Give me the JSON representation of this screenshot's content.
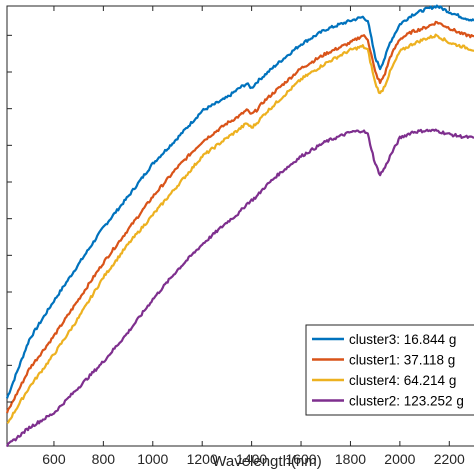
{
  "chart_data": {
    "type": "line",
    "xlabel": "Wavelength(nm)",
    "ylabel": "",
    "xlim": [
      410,
      2300
    ],
    "ylim": [
      0.04,
      0.64
    ],
    "x_ticks": [
      600,
      800,
      1000,
      1200,
      1400,
      1600,
      1800,
      2000,
      2200
    ],
    "x_tick_labels": [
      "600",
      "800",
      "1000",
      "1200",
      "1400",
      "1600",
      "1800",
      "2000",
      "2200"
    ],
    "y_ticks": [
      0.1,
      0.15,
      0.2,
      0.25,
      0.3,
      0.35,
      0.4,
      0.45,
      0.5,
      0.55,
      0.6
    ],
    "grid": false,
    "legend_position": "bottom-right",
    "x": [
      410,
      500,
      600,
      700,
      800,
      900,
      1000,
      1100,
      1200,
      1300,
      1350,
      1380,
      1400,
      1420,
      1450,
      1500,
      1600,
      1700,
      1800,
      1850,
      1870,
      1900,
      1920,
      1940,
      1960,
      2000,
      2050,
      2100,
      2150,
      2200,
      2250,
      2300
    ],
    "series": [
      {
        "name": "cluster3: 16.844 g",
        "color": "#0072BD",
        "values": [
          0.105,
          0.185,
          0.238,
          0.288,
          0.338,
          0.38,
          0.425,
          0.46,
          0.497,
          0.515,
          0.528,
          0.534,
          0.528,
          0.536,
          0.545,
          0.56,
          0.588,
          0.608,
          0.62,
          0.625,
          0.62,
          0.57,
          0.555,
          0.57,
          0.59,
          0.615,
          0.628,
          0.635,
          0.64,
          0.632,
          0.625,
          0.62
        ]
      },
      {
        "name": "cluster1: 37.118 g",
        "color": "#D95319",
        "values": [
          0.085,
          0.145,
          0.19,
          0.24,
          0.29,
          0.335,
          0.38,
          0.42,
          0.455,
          0.48,
          0.49,
          0.498,
          0.492,
          0.498,
          0.51,
          0.525,
          0.555,
          0.575,
          0.59,
          0.6,
          0.595,
          0.55,
          0.535,
          0.548,
          0.57,
          0.595,
          0.605,
          0.61,
          0.618,
          0.61,
          0.602,
          0.598
        ]
      },
      {
        "name": "cluster4: 64.214 g",
        "color": "#EDB120",
        "values": [
          0.07,
          0.12,
          0.165,
          0.215,
          0.27,
          0.315,
          0.355,
          0.395,
          0.435,
          0.46,
          0.472,
          0.48,
          0.474,
          0.48,
          0.492,
          0.508,
          0.54,
          0.562,
          0.58,
          0.585,
          0.58,
          0.535,
          0.52,
          0.532,
          0.55,
          0.578,
          0.588,
          0.595,
          0.6,
          0.59,
          0.585,
          0.58
        ]
      },
      {
        "name": "cluster2: 123.252 g",
        "color": "#7E2F8E",
        "values": [
          0.04,
          0.065,
          0.085,
          0.12,
          0.155,
          0.195,
          0.24,
          0.28,
          0.315,
          0.345,
          0.358,
          0.37,
          0.375,
          0.38,
          0.392,
          0.408,
          0.435,
          0.455,
          0.468,
          0.47,
          0.465,
          0.425,
          0.41,
          0.42,
          0.435,
          0.46,
          0.468,
          0.47,
          0.47,
          0.465,
          0.462,
          0.46
        ]
      }
    ]
  }
}
